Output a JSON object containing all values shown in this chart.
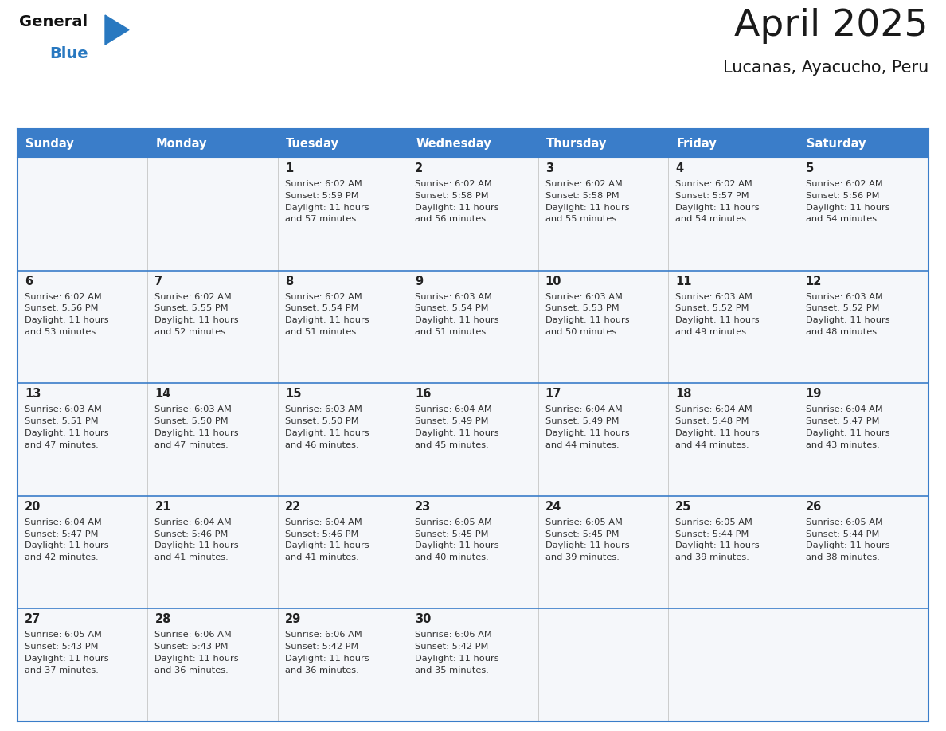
{
  "title": "April 2025",
  "subtitle": "Lucanas, Ayacucho, Peru",
  "header_color": "#3a7dc9",
  "header_text_color": "#ffffff",
  "cell_bg": "#f5f7fa",
  "border_color": "#3a7dc9",
  "row_line_color": "#3a7dc9",
  "col_line_color": "#cccccc",
  "day_names": [
    "Sunday",
    "Monday",
    "Tuesday",
    "Wednesday",
    "Thursday",
    "Friday",
    "Saturday"
  ],
  "title_color": "#1a1a1a",
  "subtitle_color": "#1a1a1a",
  "day_num_color": "#222222",
  "cell_text_color": "#333333",
  "logo_general_color": "#111111",
  "logo_blue_color": "#2878c0",
  "calendar_data": [
    [
      {
        "day": 0,
        "sunrise": "",
        "sunset": "",
        "daylight": ""
      },
      {
        "day": 0,
        "sunrise": "",
        "sunset": "",
        "daylight": ""
      },
      {
        "day": 1,
        "sunrise": "6:02 AM",
        "sunset": "5:59 PM",
        "daylight": "11 hours and 57 minutes."
      },
      {
        "day": 2,
        "sunrise": "6:02 AM",
        "sunset": "5:58 PM",
        "daylight": "11 hours and 56 minutes."
      },
      {
        "day": 3,
        "sunrise": "6:02 AM",
        "sunset": "5:58 PM",
        "daylight": "11 hours and 55 minutes."
      },
      {
        "day": 4,
        "sunrise": "6:02 AM",
        "sunset": "5:57 PM",
        "daylight": "11 hours and 54 minutes."
      },
      {
        "day": 5,
        "sunrise": "6:02 AM",
        "sunset": "5:56 PM",
        "daylight": "11 hours and 54 minutes."
      }
    ],
    [
      {
        "day": 6,
        "sunrise": "6:02 AM",
        "sunset": "5:56 PM",
        "daylight": "11 hours and 53 minutes."
      },
      {
        "day": 7,
        "sunrise": "6:02 AM",
        "sunset": "5:55 PM",
        "daylight": "11 hours and 52 minutes."
      },
      {
        "day": 8,
        "sunrise": "6:02 AM",
        "sunset": "5:54 PM",
        "daylight": "11 hours and 51 minutes."
      },
      {
        "day": 9,
        "sunrise": "6:03 AM",
        "sunset": "5:54 PM",
        "daylight": "11 hours and 51 minutes."
      },
      {
        "day": 10,
        "sunrise": "6:03 AM",
        "sunset": "5:53 PM",
        "daylight": "11 hours and 50 minutes."
      },
      {
        "day": 11,
        "sunrise": "6:03 AM",
        "sunset": "5:52 PM",
        "daylight": "11 hours and 49 minutes."
      },
      {
        "day": 12,
        "sunrise": "6:03 AM",
        "sunset": "5:52 PM",
        "daylight": "11 hours and 48 minutes."
      }
    ],
    [
      {
        "day": 13,
        "sunrise": "6:03 AM",
        "sunset": "5:51 PM",
        "daylight": "11 hours and 47 minutes."
      },
      {
        "day": 14,
        "sunrise": "6:03 AM",
        "sunset": "5:50 PM",
        "daylight": "11 hours and 47 minutes."
      },
      {
        "day": 15,
        "sunrise": "6:03 AM",
        "sunset": "5:50 PM",
        "daylight": "11 hours and 46 minutes."
      },
      {
        "day": 16,
        "sunrise": "6:04 AM",
        "sunset": "5:49 PM",
        "daylight": "11 hours and 45 minutes."
      },
      {
        "day": 17,
        "sunrise": "6:04 AM",
        "sunset": "5:49 PM",
        "daylight": "11 hours and 44 minutes."
      },
      {
        "day": 18,
        "sunrise": "6:04 AM",
        "sunset": "5:48 PM",
        "daylight": "11 hours and 44 minutes."
      },
      {
        "day": 19,
        "sunrise": "6:04 AM",
        "sunset": "5:47 PM",
        "daylight": "11 hours and 43 minutes."
      }
    ],
    [
      {
        "day": 20,
        "sunrise": "6:04 AM",
        "sunset": "5:47 PM",
        "daylight": "11 hours and 42 minutes."
      },
      {
        "day": 21,
        "sunrise": "6:04 AM",
        "sunset": "5:46 PM",
        "daylight": "11 hours and 41 minutes."
      },
      {
        "day": 22,
        "sunrise": "6:04 AM",
        "sunset": "5:46 PM",
        "daylight": "11 hours and 41 minutes."
      },
      {
        "day": 23,
        "sunrise": "6:05 AM",
        "sunset": "5:45 PM",
        "daylight": "11 hours and 40 minutes."
      },
      {
        "day": 24,
        "sunrise": "6:05 AM",
        "sunset": "5:45 PM",
        "daylight": "11 hours and 39 minutes."
      },
      {
        "day": 25,
        "sunrise": "6:05 AM",
        "sunset": "5:44 PM",
        "daylight": "11 hours and 39 minutes."
      },
      {
        "day": 26,
        "sunrise": "6:05 AM",
        "sunset": "5:44 PM",
        "daylight": "11 hours and 38 minutes."
      }
    ],
    [
      {
        "day": 27,
        "sunrise": "6:05 AM",
        "sunset": "5:43 PM",
        "daylight": "11 hours and 37 minutes."
      },
      {
        "day": 28,
        "sunrise": "6:06 AM",
        "sunset": "5:43 PM",
        "daylight": "11 hours and 36 minutes."
      },
      {
        "day": 29,
        "sunrise": "6:06 AM",
        "sunset": "5:42 PM",
        "daylight": "11 hours and 36 minutes."
      },
      {
        "day": 30,
        "sunrise": "6:06 AM",
        "sunset": "5:42 PM",
        "daylight": "11 hours and 35 minutes."
      },
      {
        "day": 0,
        "sunrise": "",
        "sunset": "",
        "daylight": ""
      },
      {
        "day": 0,
        "sunrise": "",
        "sunset": "",
        "daylight": ""
      },
      {
        "day": 0,
        "sunrise": "",
        "sunset": "",
        "daylight": ""
      }
    ]
  ]
}
